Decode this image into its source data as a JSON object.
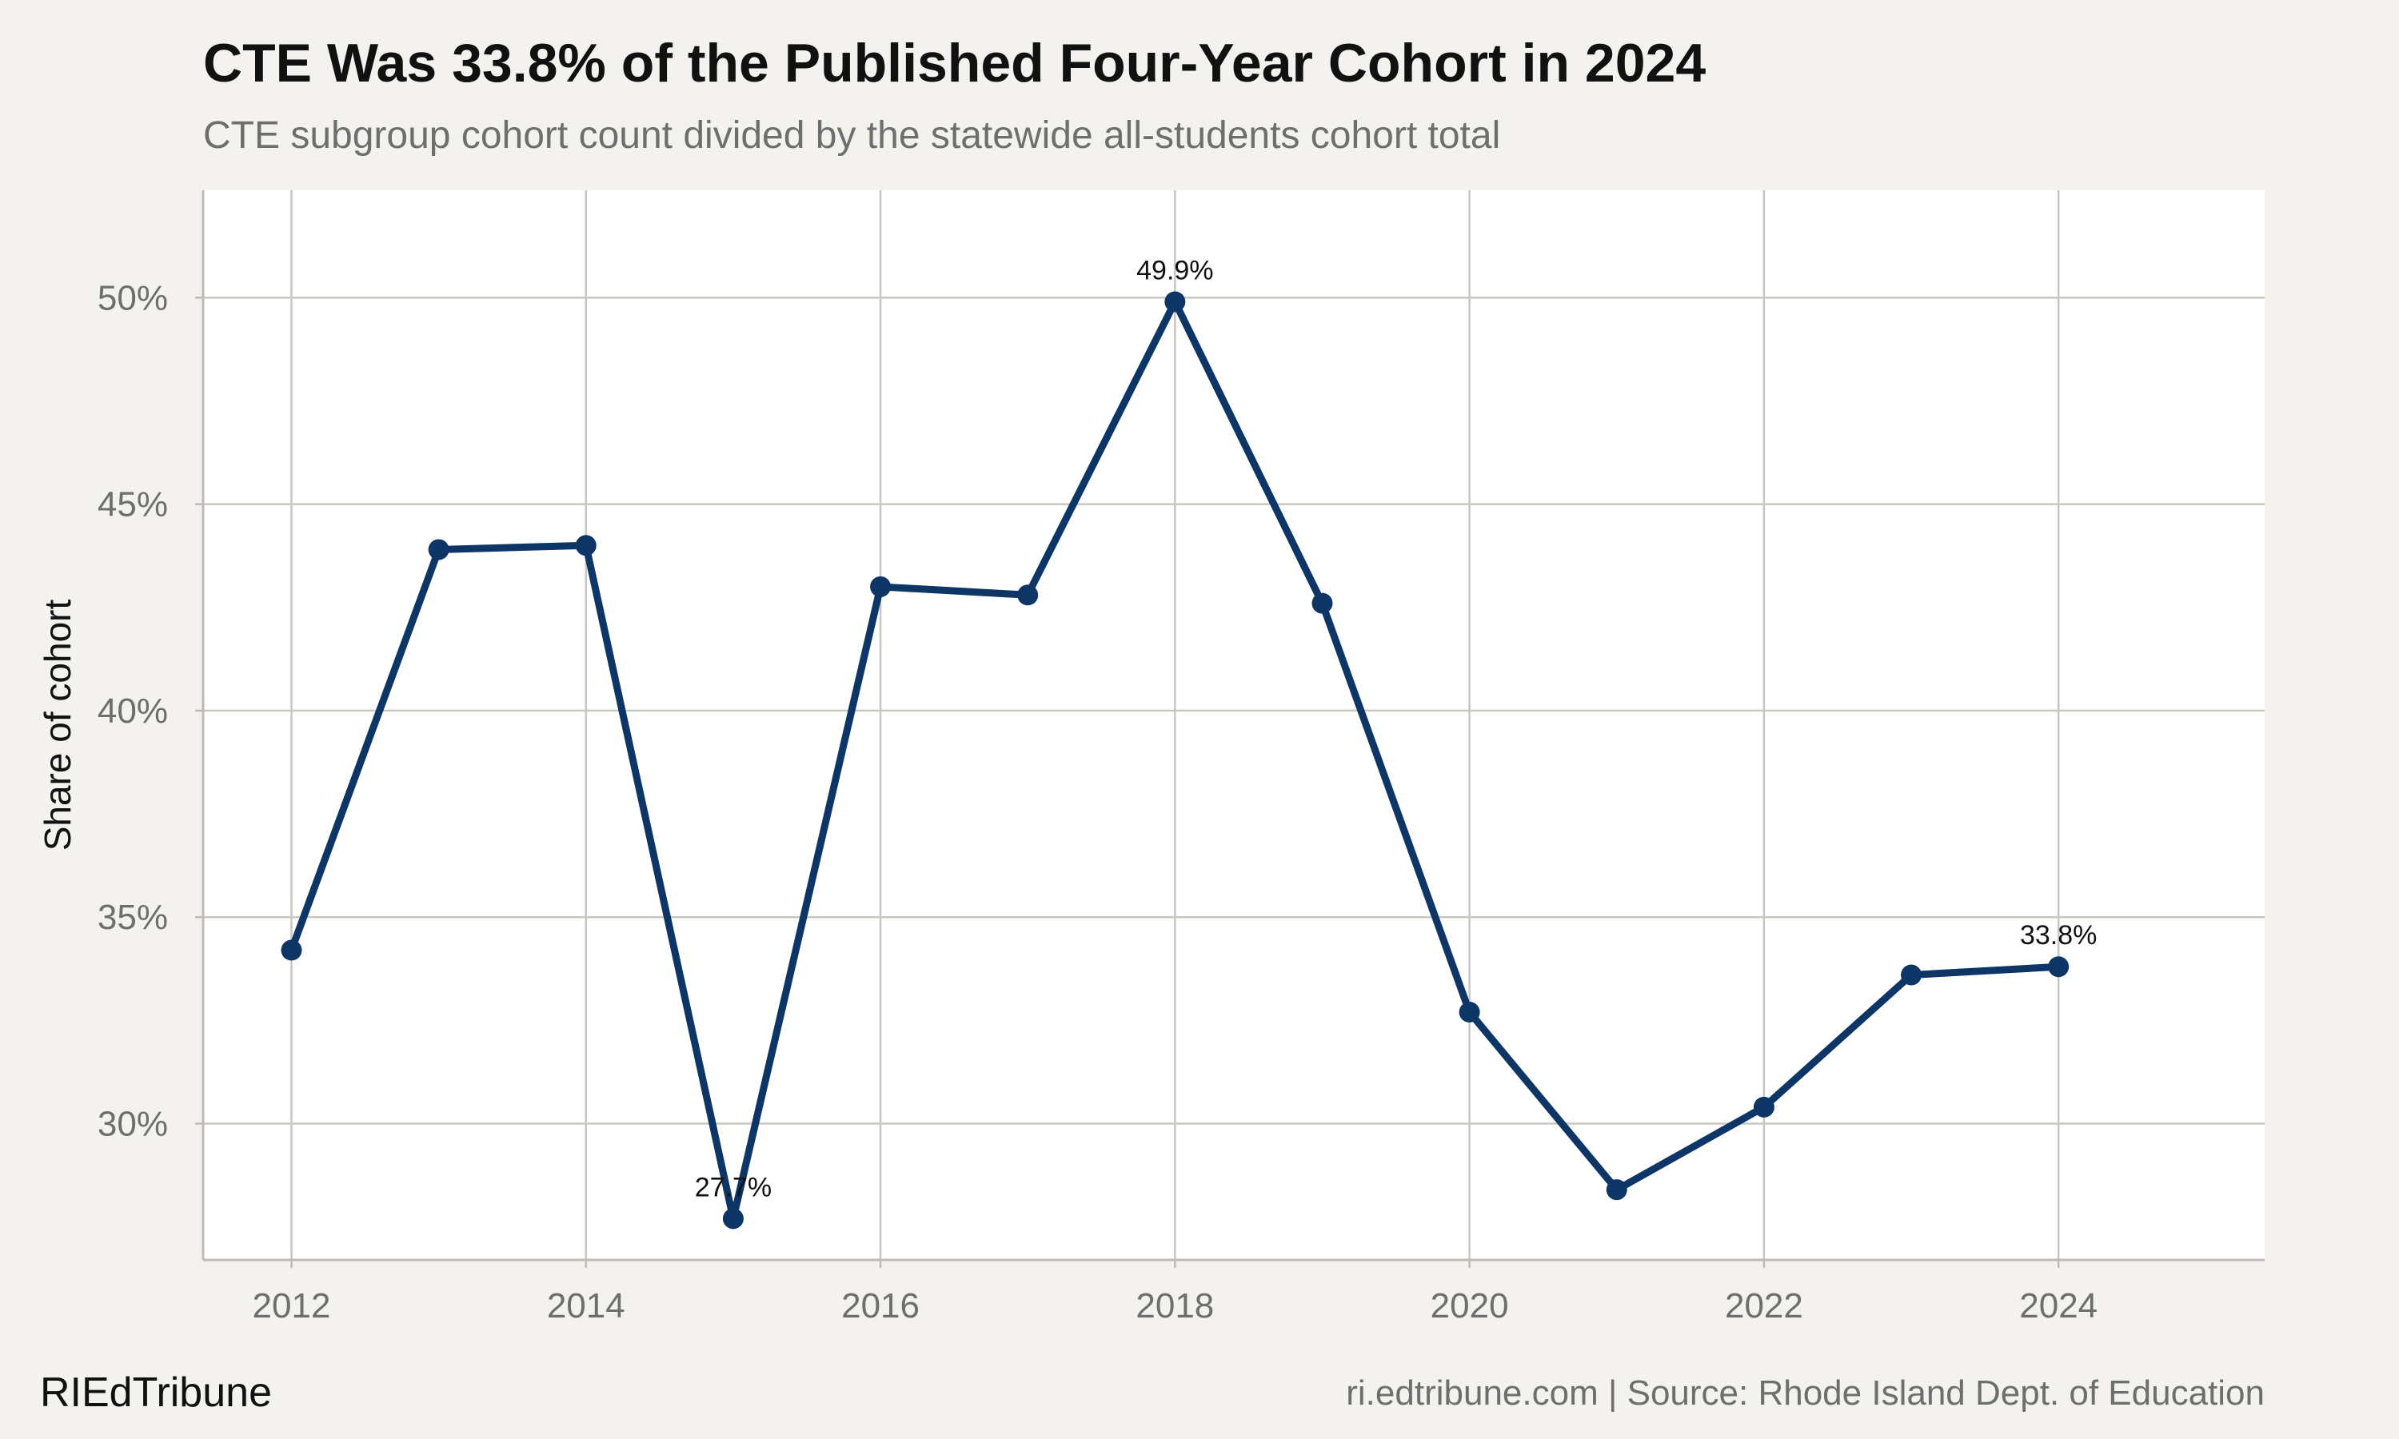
{
  "header": {
    "title": "CTE Was 33.8% of the Published Four-Year Cohort in 2024",
    "subtitle": "CTE subgroup cohort count divided by the statewide all-students cohort total"
  },
  "footer": {
    "brand": "RIEdTribune",
    "credit": "ri.edtribune.com | Source: Rhode Island Dept. of Education"
  },
  "chart_data": {
    "type": "line",
    "ylabel": "Share of cohort",
    "xlabel": "",
    "x": [
      2012,
      2013,
      2014,
      2015,
      2016,
      2017,
      2018,
      2019,
      2020,
      2021,
      2022,
      2023,
      2024
    ],
    "series": [
      {
        "values": [
          34.2,
          43.9,
          44.0,
          27.7,
          43.0,
          42.8,
          49.9,
          42.6,
          32.7,
          28.4,
          30.4,
          33.6,
          33.8
        ]
      }
    ],
    "annotations": [
      {
        "x": 2015,
        "label": "27.7%"
      },
      {
        "x": 2018,
        "label": "49.9%"
      },
      {
        "x": 2024,
        "label": "33.8%"
      }
    ],
    "xticks": [
      2012,
      2014,
      2016,
      2018,
      2020,
      2022,
      2024
    ],
    "xtick_labels": [
      "2012",
      "2014",
      "2016",
      "2018",
      "2020",
      "2022",
      "2024"
    ],
    "yticks": [
      30,
      35,
      40,
      45,
      50
    ],
    "ytick_labels": [
      "30%",
      "35%",
      "40%",
      "45%",
      "50%"
    ],
    "xlim": [
      2011.4,
      2025.4
    ],
    "ylim": [
      26.7,
      52.6
    ],
    "grid": true,
    "colors": {
      "line": "#0d3566",
      "grid": "#c9c7c0",
      "panel": "#ffffff",
      "background": "#f4f2ee"
    }
  }
}
